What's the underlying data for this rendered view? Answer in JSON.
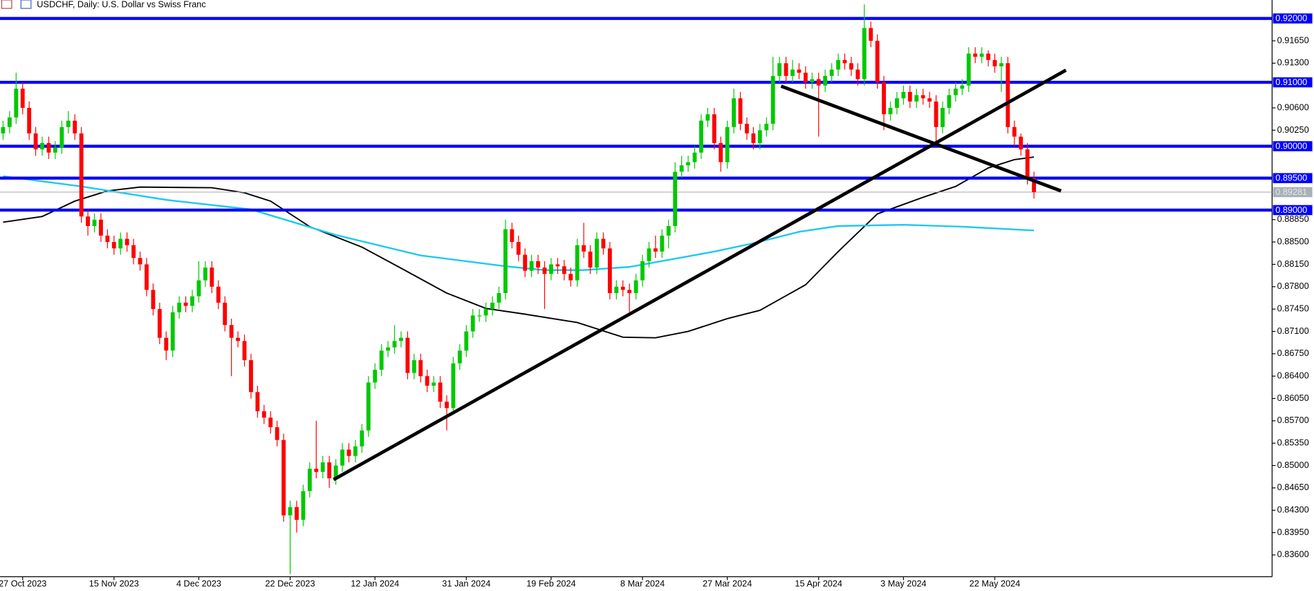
{
  "chart_data": {
    "type": "candlestick",
    "title": "USDCHF, Daily:  U.S. Dollar vs Swiss Franc",
    "up_color": "#00c800",
    "down_color": "#ff0000",
    "xlim": [
      -0.47,
      194.5
    ],
    "ylim": [
      0.83259,
      0.92289
    ],
    "xticks": [
      {
        "value": 3,
        "label": "27 Oct 2023"
      },
      {
        "value": 17,
        "label": "15 Nov 2023"
      },
      {
        "value": 30,
        "label": "4 Dec 2023"
      },
      {
        "value": 44,
        "label": "22 Dec 2023"
      },
      {
        "value": 57,
        "label": "12 Jan 2024"
      },
      {
        "value": 71,
        "label": "31 Jan 2024"
      },
      {
        "value": 84,
        "label": "19 Feb 2024"
      },
      {
        "value": 98,
        "label": "8 Mar 2024"
      },
      {
        "value": 111,
        "label": "27 Mar 2024"
      },
      {
        "value": 125,
        "label": "15 Apr 2024"
      },
      {
        "value": 138,
        "label": "3 May 2024"
      },
      {
        "value": 152,
        "label": "22 May 2024"
      }
    ],
    "yticks": [
      {
        "value": 0.836,
        "label": "0.83600"
      },
      {
        "value": 0.8395,
        "label": "0.83950"
      },
      {
        "value": 0.843,
        "label": "0.84300"
      },
      {
        "value": 0.8465,
        "label": "0.84650"
      },
      {
        "value": 0.85,
        "label": "0.85000"
      },
      {
        "value": 0.8535,
        "label": "0.85350"
      },
      {
        "value": 0.857,
        "label": "0.85700"
      },
      {
        "value": 0.8605,
        "label": "0.86050"
      },
      {
        "value": 0.864,
        "label": "0.86400"
      },
      {
        "value": 0.8675,
        "label": "0.86750"
      },
      {
        "value": 0.871,
        "label": "0.87100"
      },
      {
        "value": 0.8745,
        "label": "0.87450"
      },
      {
        "value": 0.878,
        "label": "0.87800"
      },
      {
        "value": 0.8815,
        "label": "0.88150"
      },
      {
        "value": 0.885,
        "label": "0.88500"
      },
      {
        "value": 0.8885,
        "label": "0.88850"
      },
      {
        "value": 0.9025,
        "label": "0.90250"
      },
      {
        "value": 0.906,
        "label": "0.90600"
      },
      {
        "value": 0.913,
        "label": "0.91300"
      },
      {
        "value": 0.9165,
        "label": "0.91650"
      }
    ],
    "levels": [
      {
        "value": 0.92,
        "label": "0.92000"
      },
      {
        "value": 0.91,
        "label": "0.91000"
      },
      {
        "value": 0.9,
        "label": "0.90000"
      },
      {
        "value": 0.895,
        "label": "0.89500"
      },
      {
        "value": 0.89,
        "label": "0.89000"
      }
    ],
    "level_color": "#0000ff",
    "current_price": {
      "value": 0.89281,
      "label": "0.89281"
    },
    "candles": [
      [
        0.902,
        0.904,
        0.901,
        0.903
      ],
      [
        0.903,
        0.9055,
        0.902,
        0.9045
      ],
      [
        0.9045,
        0.9115,
        0.9035,
        0.909
      ],
      [
        0.909,
        0.91,
        0.905,
        0.906
      ],
      [
        0.906,
        0.907,
        0.901,
        0.902
      ],
      [
        0.902,
        0.903,
        0.8985,
        0.8995
      ],
      [
        0.8995,
        0.9015,
        0.8985,
        0.9005
      ],
      [
        0.9005,
        0.9015,
        0.898,
        0.899
      ],
      [
        0.899,
        0.9008,
        0.898,
        0.8998
      ],
      [
        0.8998,
        0.904,
        0.8988,
        0.903
      ],
      [
        0.903,
        0.9055,
        0.902,
        0.904
      ],
      [
        0.904,
        0.905,
        0.901,
        0.902
      ],
      [
        0.902,
        0.903,
        0.888,
        0.889
      ],
      [
        0.889,
        0.89,
        0.886,
        0.8875
      ],
      [
        0.8875,
        0.8895,
        0.8865,
        0.8885
      ],
      [
        0.8885,
        0.8895,
        0.885,
        0.886
      ],
      [
        0.886,
        0.887,
        0.884,
        0.885
      ],
      [
        0.885,
        0.886,
        0.883,
        0.884
      ],
      [
        0.884,
        0.8865,
        0.883,
        0.8855
      ],
      [
        0.8855,
        0.8865,
        0.8835,
        0.8845
      ],
      [
        0.8845,
        0.8855,
        0.8815,
        0.8825
      ],
      [
        0.8825,
        0.8835,
        0.8805,
        0.8815
      ],
      [
        0.8815,
        0.8825,
        0.8765,
        0.8775
      ],
      [
        0.8775,
        0.8785,
        0.8735,
        0.8745
      ],
      [
        0.8745,
        0.8755,
        0.869,
        0.87
      ],
      [
        0.87,
        0.871,
        0.8665,
        0.868
      ],
      [
        0.868,
        0.875,
        0.867,
        0.874
      ],
      [
        0.874,
        0.8765,
        0.873,
        0.8755
      ],
      [
        0.8755,
        0.8765,
        0.874,
        0.875
      ],
      [
        0.875,
        0.8775,
        0.874,
        0.8765
      ],
      [
        0.8765,
        0.882,
        0.8755,
        0.879
      ],
      [
        0.879,
        0.882,
        0.878,
        0.881
      ],
      [
        0.881,
        0.882,
        0.877,
        0.878
      ],
      [
        0.878,
        0.879,
        0.8745,
        0.8755
      ],
      [
        0.8755,
        0.8765,
        0.871,
        0.872
      ],
      [
        0.872,
        0.873,
        0.864,
        0.87
      ],
      [
        0.87,
        0.871,
        0.8685,
        0.8695
      ],
      [
        0.8695,
        0.8705,
        0.8655,
        0.8665
      ],
      [
        0.8665,
        0.8675,
        0.8605,
        0.8615
      ],
      [
        0.8615,
        0.8625,
        0.8575,
        0.8585
      ],
      [
        0.8585,
        0.8595,
        0.8565,
        0.8575
      ],
      [
        0.8575,
        0.8585,
        0.855,
        0.856
      ],
      [
        0.856,
        0.857,
        0.853,
        0.854
      ],
      [
        0.854,
        0.855,
        0.8412,
        0.8422
      ],
      [
        0.8422,
        0.8445,
        0.833,
        0.8435
      ],
      [
        0.8435,
        0.8445,
        0.8395,
        0.8415
      ],
      [
        0.8415,
        0.847,
        0.8405,
        0.846
      ],
      [
        0.846,
        0.8505,
        0.845,
        0.8495
      ],
      [
        0.8495,
        0.857,
        0.848,
        0.849
      ],
      [
        0.849,
        0.8515,
        0.848,
        0.8505
      ],
      [
        0.8505,
        0.8515,
        0.8465,
        0.848
      ],
      [
        0.848,
        0.851,
        0.847,
        0.85
      ],
      [
        0.85,
        0.8535,
        0.849,
        0.8525
      ],
      [
        0.8525,
        0.8535,
        0.8505,
        0.8515
      ],
      [
        0.8515,
        0.854,
        0.8505,
        0.853
      ],
      [
        0.853,
        0.8565,
        0.852,
        0.8555
      ],
      [
        0.8555,
        0.864,
        0.8545,
        0.863
      ],
      [
        0.863,
        0.866,
        0.862,
        0.865
      ],
      [
        0.865,
        0.869,
        0.864,
        0.868
      ],
      [
        0.868,
        0.8695,
        0.867,
        0.8685
      ],
      [
        0.8685,
        0.872,
        0.8675,
        0.8695
      ],
      [
        0.8695,
        0.871,
        0.8685,
        0.87
      ],
      [
        0.87,
        0.871,
        0.8635,
        0.8645
      ],
      [
        0.8645,
        0.8675,
        0.8635,
        0.8665
      ],
      [
        0.8665,
        0.8675,
        0.863,
        0.864
      ],
      [
        0.864,
        0.865,
        0.8615,
        0.8625
      ],
      [
        0.8625,
        0.864,
        0.8615,
        0.863
      ],
      [
        0.863,
        0.864,
        0.859,
        0.86
      ],
      [
        0.86,
        0.861,
        0.8555,
        0.859
      ],
      [
        0.859,
        0.867,
        0.858,
        0.866
      ],
      [
        0.866,
        0.869,
        0.865,
        0.868
      ],
      [
        0.868,
        0.872,
        0.867,
        0.871
      ],
      [
        0.871,
        0.8745,
        0.87,
        0.8735
      ],
      [
        0.8735,
        0.8745,
        0.8725,
        0.8735
      ],
      [
        0.8735,
        0.8755,
        0.8725,
        0.8745
      ],
      [
        0.8745,
        0.8765,
        0.8735,
        0.8755
      ],
      [
        0.8755,
        0.878,
        0.8745,
        0.877
      ],
      [
        0.877,
        0.8885,
        0.876,
        0.887
      ],
      [
        0.887,
        0.888,
        0.884,
        0.885
      ],
      [
        0.885,
        0.886,
        0.882,
        0.883
      ],
      [
        0.883,
        0.884,
        0.8795,
        0.8805
      ],
      [
        0.8805,
        0.883,
        0.8795,
        0.882
      ],
      [
        0.882,
        0.883,
        0.88,
        0.881
      ],
      [
        0.881,
        0.882,
        0.8745,
        0.88
      ],
      [
        0.88,
        0.8825,
        0.879,
        0.8815
      ],
      [
        0.8815,
        0.8825,
        0.88,
        0.8812
      ],
      [
        0.8812,
        0.8822,
        0.879,
        0.88
      ],
      [
        0.88,
        0.881,
        0.878,
        0.879
      ],
      [
        0.879,
        0.8855,
        0.878,
        0.8845
      ],
      [
        0.8845,
        0.888,
        0.8825,
        0.8835
      ],
      [
        0.8835,
        0.8845,
        0.88,
        0.881
      ],
      [
        0.881,
        0.8865,
        0.88,
        0.8855
      ],
      [
        0.8855,
        0.8865,
        0.883,
        0.884
      ],
      [
        0.884,
        0.885,
        0.876,
        0.877
      ],
      [
        0.877,
        0.879,
        0.876,
        0.878
      ],
      [
        0.878,
        0.879,
        0.8765,
        0.8775
      ],
      [
        0.8775,
        0.8785,
        0.874,
        0.877
      ],
      [
        0.877,
        0.88,
        0.876,
        0.879
      ],
      [
        0.879,
        0.883,
        0.878,
        0.882
      ],
      [
        0.882,
        0.885,
        0.881,
        0.884
      ],
      [
        0.884,
        0.886,
        0.8825,
        0.8835
      ],
      [
        0.8835,
        0.887,
        0.8825,
        0.886
      ],
      [
        0.886,
        0.8885,
        0.884,
        0.8875
      ],
      [
        0.8875,
        0.8975,
        0.8865,
        0.896
      ],
      [
        0.896,
        0.8985,
        0.895,
        0.897
      ],
      [
        0.897,
        0.8985,
        0.896,
        0.8975
      ],
      [
        0.8975,
        0.9,
        0.8965,
        0.899
      ],
      [
        0.899,
        0.905,
        0.898,
        0.904
      ],
      [
        0.904,
        0.906,
        0.903,
        0.905
      ],
      [
        0.905,
        0.906,
        0.8995,
        0.9005
      ],
      [
        0.9005,
        0.9015,
        0.896,
        0.8975
      ],
      [
        0.8975,
        0.904,
        0.8965,
        0.903
      ],
      [
        0.903,
        0.909,
        0.902,
        0.9075
      ],
      [
        0.9075,
        0.9085,
        0.9025,
        0.9035
      ],
      [
        0.9035,
        0.9045,
        0.901,
        0.902
      ],
      [
        0.902,
        0.903,
        0.8995,
        0.9005
      ],
      [
        0.9005,
        0.9035,
        0.8995,
        0.9025
      ],
      [
        0.9025,
        0.9045,
        0.9015,
        0.9035
      ],
      [
        0.9035,
        0.914,
        0.9025,
        0.911
      ],
      [
        0.911,
        0.914,
        0.91,
        0.913
      ],
      [
        0.913,
        0.914,
        0.91,
        0.911
      ],
      [
        0.911,
        0.9135,
        0.91,
        0.912
      ],
      [
        0.912,
        0.913,
        0.9105,
        0.9115
      ],
      [
        0.9115,
        0.9125,
        0.909,
        0.91
      ],
      [
        0.91,
        0.9115,
        0.909,
        0.9105
      ],
      [
        0.9105,
        0.9115,
        0.9015,
        0.9095
      ],
      [
        0.9095,
        0.912,
        0.9085,
        0.911
      ],
      [
        0.911,
        0.913,
        0.91,
        0.912
      ],
      [
        0.912,
        0.9145,
        0.911,
        0.9135
      ],
      [
        0.9135,
        0.9145,
        0.912,
        0.913
      ],
      [
        0.913,
        0.914,
        0.911,
        0.912
      ],
      [
        0.912,
        0.913,
        0.9095,
        0.9105
      ],
      [
        0.9105,
        0.9222,
        0.9095,
        0.9185
      ],
      [
        0.9185,
        0.9195,
        0.9155,
        0.9165
      ],
      [
        0.9165,
        0.9175,
        0.909,
        0.91
      ],
      [
        0.91,
        0.911,
        0.9025,
        0.905
      ],
      [
        0.905,
        0.907,
        0.904,
        0.906
      ],
      [
        0.906,
        0.9085,
        0.905,
        0.9075
      ],
      [
        0.9075,
        0.9095,
        0.9065,
        0.9085
      ],
      [
        0.9085,
        0.9095,
        0.906,
        0.907
      ],
      [
        0.907,
        0.909,
        0.906,
        0.908
      ],
      [
        0.908,
        0.909,
        0.9065,
        0.9075
      ],
      [
        0.9075,
        0.9085,
        0.906,
        0.907
      ],
      [
        0.907,
        0.908,
        0.9005,
        0.903
      ],
      [
        0.903,
        0.907,
        0.902,
        0.906
      ],
      [
        0.906,
        0.909,
        0.905,
        0.908
      ],
      [
        0.908,
        0.91,
        0.907,
        0.909
      ],
      [
        0.909,
        0.9105,
        0.908,
        0.9095
      ],
      [
        0.9095,
        0.9155,
        0.9085,
        0.9145
      ],
      [
        0.9145,
        0.9155,
        0.913,
        0.914
      ],
      [
        0.914,
        0.9155,
        0.913,
        0.9145
      ],
      [
        0.9145,
        0.915,
        0.9125,
        0.9135
      ],
      [
        0.9135,
        0.9145,
        0.9115,
        0.9125
      ],
      [
        0.9125,
        0.914,
        0.9085,
        0.913
      ],
      [
        0.913,
        0.914,
        0.902,
        0.903
      ],
      [
        0.903,
        0.904,
        0.9,
        0.9015
      ],
      [
        0.9015,
        0.902,
        0.8985,
        0.8995
      ],
      [
        0.8995,
        0.9005,
        0.894,
        0.895
      ],
      [
        0.895,
        0.896,
        0.8918,
        0.8928
      ]
    ],
    "ma_lines": [
      {
        "color": "#000000",
        "x": [
          0,
          6,
          11,
          16,
          21,
          32,
          37,
          41,
          47,
          55,
          61,
          68,
          74,
          80,
          88,
          95,
          100,
          105,
          111,
          116,
          123,
          128,
          134,
          141,
          146,
          151,
          155,
          158
        ],
        "values": [
          0.8881,
          0.889,
          0.8914,
          0.893,
          0.8936,
          0.8935,
          0.8927,
          0.8914,
          0.8874,
          0.8842,
          0.8809,
          0.877,
          0.8746,
          0.8737,
          0.8724,
          0.8701,
          0.87,
          0.871,
          0.873,
          0.8743,
          0.8783,
          0.8835,
          0.8894,
          0.892,
          0.8937,
          0.8966,
          0.8979,
          0.8983
        ]
      },
      {
        "color": "#1ec8f0",
        "x": [
          0,
          12,
          25,
          38,
          51,
          64,
          77,
          83,
          89,
          96,
          102,
          109,
          115,
          122,
          128,
          138,
          147,
          158
        ],
        "values": [
          0.8953,
          0.8937,
          0.8916,
          0.8901,
          0.8861,
          0.8829,
          0.8812,
          0.8806,
          0.8806,
          0.8811,
          0.8822,
          0.8835,
          0.8848,
          0.8866,
          0.8875,
          0.8877,
          0.8874,
          0.8868
        ]
      }
    ],
    "trendlines": [
      {
        "color": "#000000",
        "x": [
          50.66,
          162.9
        ],
        "values": [
          0.8478,
          0.9119
        ]
      },
      {
        "color": "#000000",
        "x": [
          119.25,
          162.15
        ],
        "values": [
          0.9094,
          0.893
        ]
      }
    ]
  }
}
